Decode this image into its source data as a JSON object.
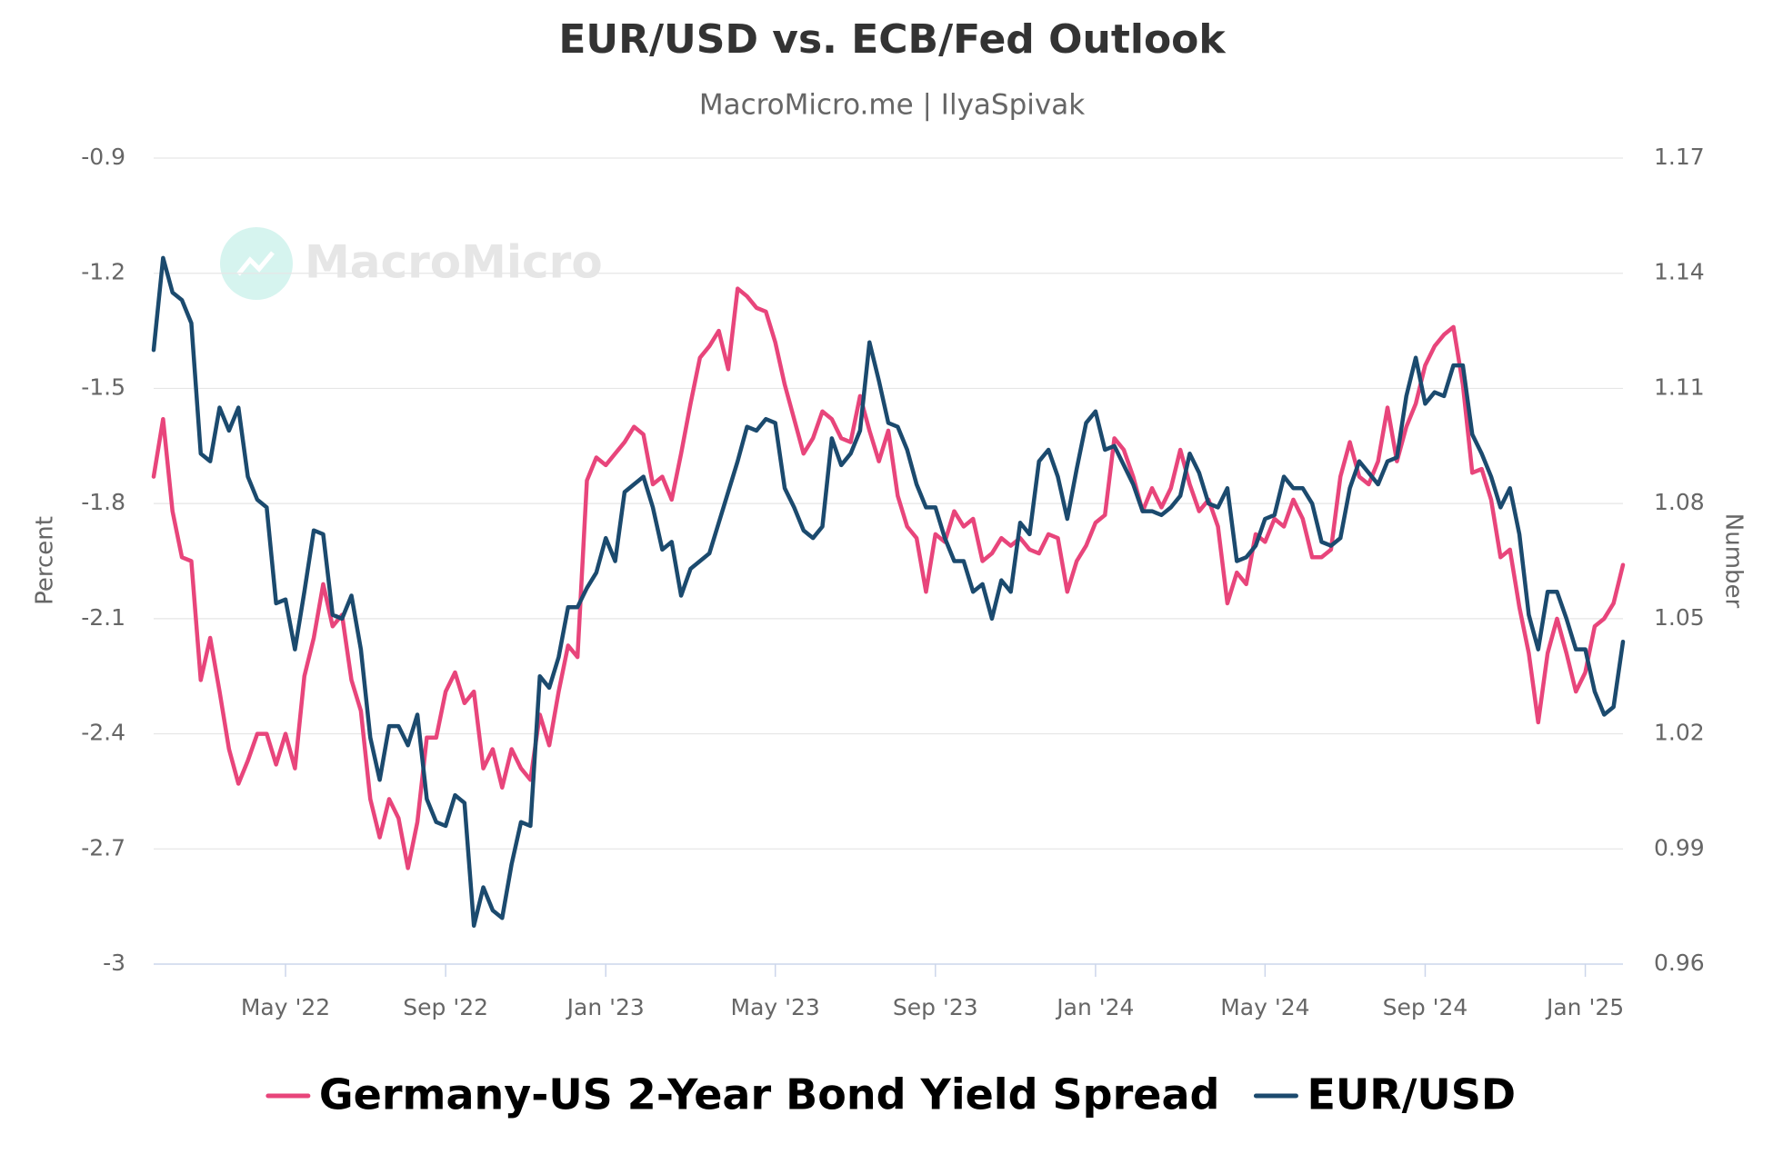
{
  "chart_data": {
    "type": "line",
    "title": "EUR/USD vs. ECB/Fed Outlook",
    "subtitle": "MacroMicro.me | IlyaSpivak",
    "watermark": "MacroMicro",
    "y_label": "Percent",
    "y2_label": "Number",
    "ylim": [
      -3,
      -0.9
    ],
    "yticks": [
      -3,
      -2.7,
      -2.4,
      -2.1,
      -1.8,
      -1.5,
      -1.2,
      -0.9
    ],
    "y2lim": [
      0.96,
      1.17
    ],
    "y2ticks": [
      0.96,
      0.99,
      1.02,
      1.05,
      1.08,
      1.11,
      1.14,
      1.17
    ],
    "grid": true,
    "legend": "bottom",
    "categories": [
      null,
      null,
      null,
      null,
      null,
      null,
      null,
      null,
      null,
      null,
      null,
      null,
      null,
      null,
      "May '22",
      null,
      null,
      null,
      null,
      null,
      null,
      null,
      null,
      null,
      null,
      null,
      null,
      null,
      null,
      null,
      null,
      "Sep '22",
      null,
      null,
      null,
      null,
      null,
      null,
      null,
      null,
      null,
      null,
      null,
      null,
      null,
      null,
      null,
      null,
      "Jan '23",
      null,
      null,
      null,
      null,
      null,
      null,
      null,
      null,
      null,
      null,
      null,
      null,
      null,
      null,
      null,
      null,
      null,
      "May '23",
      null,
      null,
      null,
      null,
      null,
      null,
      null,
      null,
      null,
      null,
      null,
      null,
      null,
      null,
      null,
      null,
      "Sep '23",
      null,
      null,
      null,
      null,
      null,
      null,
      null,
      null,
      null,
      null,
      null,
      null,
      null,
      null,
      null,
      null,
      "Jan '24",
      null,
      null,
      null,
      null,
      null,
      null,
      null,
      null,
      null,
      null,
      null,
      null,
      null,
      null,
      null,
      null,
      null,
      "May '24",
      null,
      null,
      null,
      null,
      null,
      null,
      null,
      null,
      null,
      null,
      null,
      null,
      null,
      null,
      null,
      null,
      "Sep '24",
      null,
      null,
      null,
      null,
      null,
      null,
      null,
      null,
      null,
      null,
      null,
      null,
      null,
      null,
      null,
      null,
      "Jan '25",
      null,
      null,
      null,
      null
    ],
    "series": [
      {
        "name": "Germany-US 2-Year Bond Yield Spread",
        "color": "#e8457b",
        "axis": "y",
        "values": [
          -1.73,
          -1.58,
          -1.82,
          -1.94,
          -1.95,
          -2.26,
          -2.15,
          -2.29,
          -2.44,
          -2.53,
          -2.47,
          -2.4,
          -2.4,
          -2.48,
          -2.4,
          -2.49,
          -2.25,
          -2.15,
          -2.01,
          -2.12,
          -2.09,
          -2.26,
          -2.34,
          -2.57,
          -2.67,
          -2.57,
          -2.62,
          -2.75,
          -2.63,
          -2.41,
          -2.41,
          -2.29,
          -2.24,
          -2.32,
          -2.29,
          -2.49,
          -2.44,
          -2.54,
          -2.44,
          -2.49,
          -2.52,
          -2.35,
          -2.43,
          -2.29,
          -2.17,
          -2.2,
          -1.74,
          -1.68,
          -1.7,
          -1.67,
          -1.64,
          -1.6,
          -1.62,
          -1.75,
          -1.73,
          -1.79,
          -1.67,
          -1.54,
          -1.42,
          -1.39,
          -1.35,
          -1.45,
          -1.24,
          -1.26,
          -1.29,
          -1.3,
          -1.38,
          -1.49,
          -1.58,
          -1.67,
          -1.63,
          -1.56,
          -1.58,
          -1.63,
          -1.64,
          -1.52,
          -1.61,
          -1.69,
          -1.61,
          -1.78,
          -1.86,
          -1.89,
          -2.03,
          -1.88,
          -1.9,
          -1.82,
          -1.86,
          -1.84,
          -1.95,
          -1.93,
          -1.89,
          -1.91,
          -1.89,
          -1.92,
          -1.93,
          -1.88,
          -1.89,
          -2.03,
          -1.95,
          -1.91,
          -1.85,
          -1.83,
          -1.63,
          -1.66,
          -1.73,
          -1.82,
          -1.76,
          -1.81,
          -1.76,
          -1.66,
          -1.75,
          -1.82,
          -1.79,
          -1.86,
          -2.06,
          -1.98,
          -2.01,
          -1.88,
          -1.9,
          -1.84,
          -1.86,
          -1.79,
          -1.84,
          -1.94,
          -1.94,
          -1.92,
          -1.73,
          -1.64,
          -1.73,
          -1.75,
          -1.69,
          -1.55,
          -1.69,
          -1.6,
          -1.54,
          -1.44,
          -1.39,
          -1.36,
          -1.34,
          -1.49,
          -1.72,
          -1.71,
          -1.79,
          -1.94,
          -1.92,
          -2.07,
          -2.19,
          -2.37,
          -2.19,
          -2.1,
          -2.19,
          -2.29,
          -2.24,
          -2.12,
          -2.1,
          -2.06,
          -1.96
        ]
      },
      {
        "name": "EUR/USD",
        "color": "#1b4a6e",
        "axis": "y2",
        "values": [
          1.12,
          1.144,
          1.135,
          1.133,
          1.127,
          1.093,
          1.091,
          1.105,
          1.099,
          1.105,
          1.087,
          1.081,
          1.079,
          1.054,
          1.055,
          1.042,
          1.057,
          1.073,
          1.072,
          1.051,
          1.05,
          1.056,
          1.042,
          1.019,
          1.008,
          1.022,
          1.022,
          1.017,
          1.025,
          1.003,
          0.997,
          0.996,
          1.004,
          1.002,
          0.97,
          0.98,
          0.974,
          0.972,
          0.986,
          0.997,
          0.996,
          1.035,
          1.032,
          1.04,
          1.053,
          1.053,
          1.058,
          1.062,
          1.071,
          1.065,
          1.083,
          1.085,
          1.087,
          1.079,
          1.068,
          1.07,
          1.056,
          1.063,
          1.065,
          1.067,
          1.075,
          1.083,
          1.091,
          1.1,
          1.099,
          1.102,
          1.101,
          1.084,
          1.079,
          1.073,
          1.071,
          1.074,
          1.097,
          1.09,
          1.093,
          1.099,
          1.122,
          1.112,
          1.101,
          1.1,
          1.094,
          1.085,
          1.079,
          1.079,
          1.071,
          1.065,
          1.065,
          1.057,
          1.059,
          1.05,
          1.06,
          1.057,
          1.075,
          1.072,
          1.091,
          1.094,
          1.087,
          1.076,
          1.089,
          1.101,
          1.104,
          1.094,
          1.095,
          1.09,
          1.085,
          1.078,
          1.078,
          1.077,
          1.079,
          1.082,
          1.093,
          1.088,
          1.08,
          1.079,
          1.084,
          1.065,
          1.066,
          1.069,
          1.076,
          1.077,
          1.087,
          1.084,
          1.084,
          1.08,
          1.07,
          1.069,
          1.071,
          1.084,
          1.091,
          1.088,
          1.085,
          1.091,
          1.092,
          1.108,
          1.118,
          1.106,
          1.109,
          1.108,
          1.116,
          1.116,
          1.098,
          1.093,
          1.087,
          1.079,
          1.084,
          1.072,
          1.051,
          1.042,
          1.057,
          1.057,
          1.05,
          1.042,
          1.042,
          1.031,
          1.025,
          1.027,
          1.044
        ]
      }
    ]
  }
}
